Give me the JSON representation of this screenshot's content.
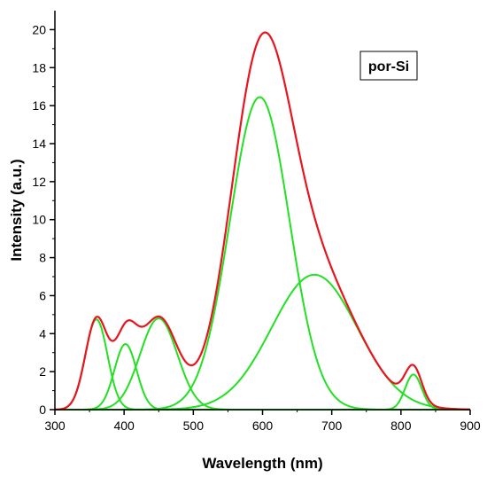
{
  "chart_data": {
    "type": "line",
    "title": "",
    "xlabel": "Wavelength (nm)",
    "ylabel": "Intensity (a.u.)",
    "xlim": [
      300,
      900
    ],
    "ylim": [
      0,
      21
    ],
    "x_ticks": [
      300,
      400,
      500,
      600,
      700,
      800,
      900
    ],
    "y_ticks": [
      0,
      2,
      4,
      6,
      8,
      10,
      12,
      14,
      16,
      18,
      20
    ],
    "grid": false,
    "legend": {
      "text": "por-Si",
      "placement": "top-right"
    },
    "colors": {
      "envelope": "#e8141e",
      "components": "#22e022"
    },
    "components": [
      {
        "center": 360,
        "amplitude": 4.75,
        "sigma": 16
      },
      {
        "center": 402,
        "amplitude": 3.45,
        "sigma": 16
      },
      {
        "center": 450,
        "amplitude": 4.8,
        "sigma": 27
      },
      {
        "center": 596,
        "amplitude": 16.45,
        "sigma": 43
      },
      {
        "center": 675,
        "amplitude": 7.1,
        "sigma": 62
      },
      {
        "center": 818,
        "amplitude": 1.85,
        "sigma": 12
      }
    ]
  }
}
